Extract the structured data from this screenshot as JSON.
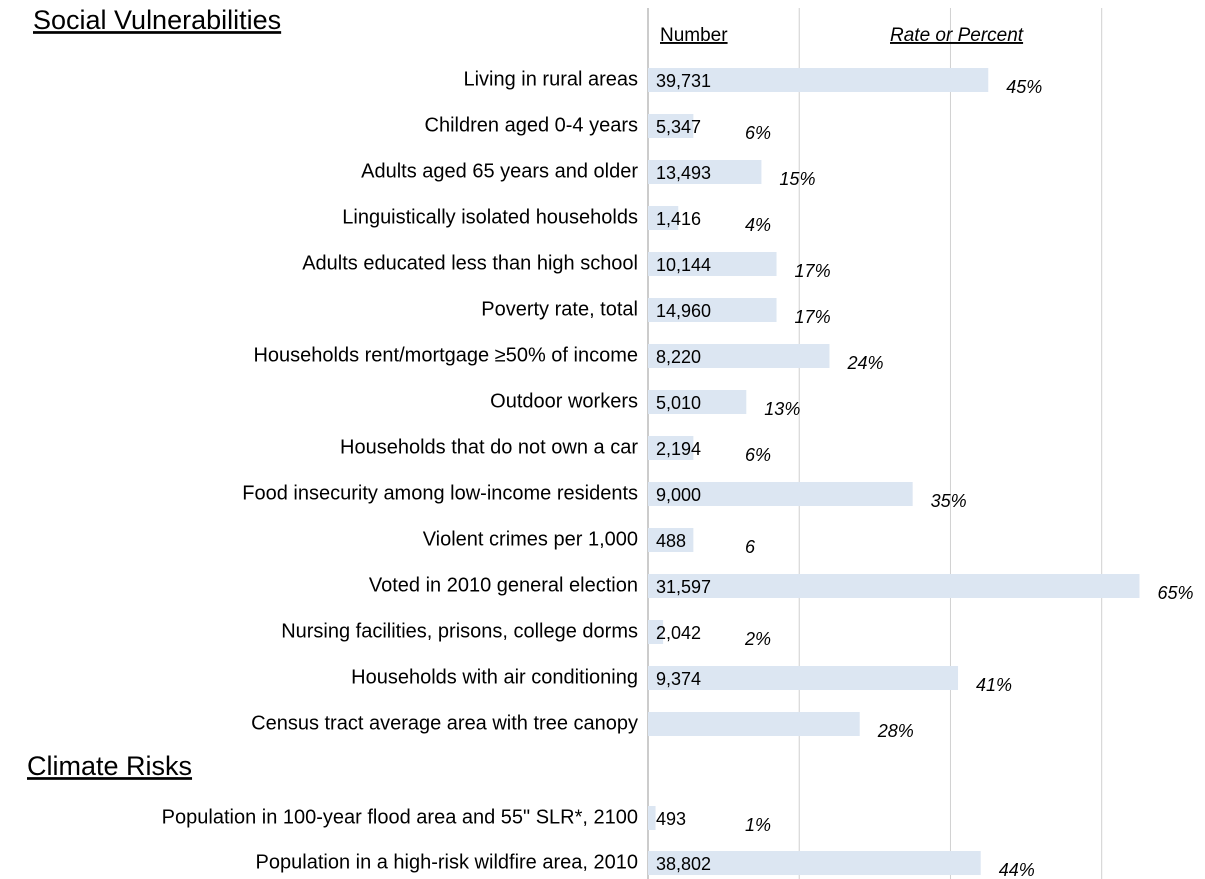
{
  "chart_data": {
    "type": "bar",
    "headers": {
      "number": "Number",
      "rate": "Rate or Percent"
    },
    "color": "#dce6f2",
    "xlim": [
      0,
      73
    ],
    "xticks": [
      0,
      20,
      40,
      60
    ],
    "grid": true,
    "sections": [
      {
        "title": "Social Vulnerabilities",
        "categories": [
          "Living in rural areas",
          "Children aged 0-4 years",
          "Adults aged 65 years and older",
          "Linguistically isolated households",
          "Adults educated less than high school",
          "Poverty rate, total",
          "Households rent/mortgage ≥50% of income",
          "Outdoor workers",
          "Households that do not own a car",
          "Food insecurity among low-income residents",
          "Violent crimes per 1,000",
          "Voted in 2010 general election",
          "Nursing facilities, prisons, college dorms",
          "Households with air conditioning",
          "Census tract average area with tree canopy"
        ],
        "numbers": [
          39731,
          5347,
          13493,
          1416,
          10144,
          14960,
          8220,
          5010,
          2194,
          9000,
          488,
          31597,
          2042,
          9374,
          null
        ],
        "number_labels": [
          "39,731",
          "5,347",
          "13,493",
          "1,416",
          "10,144",
          "14,960",
          "8,220",
          "5,010",
          "2,194",
          "9,000",
          "488",
          "31,597",
          "2,042",
          "9,374",
          null
        ],
        "values": [
          45,
          6,
          15,
          4,
          17,
          17,
          24,
          13,
          6,
          35,
          6,
          65,
          2,
          41,
          28
        ],
        "value_labels": [
          "45%",
          "6%",
          "15%",
          "4%",
          "17%",
          "17%",
          "24%",
          "13%",
          "6%",
          "35%",
          "6",
          "65%",
          "2%",
          "41%",
          "28%"
        ]
      },
      {
        "title": "Climate Risks",
        "categories": [
          "Population in 100-year flood area and 55\" SLR*, 2100",
          "Population in a high-risk wildfire area, 2010"
        ],
        "numbers": [
          493,
          38802
        ],
        "number_labels": [
          "493",
          "38,802"
        ],
        "values": [
          1,
          44
        ],
        "value_labels": [
          "1%",
          "44%"
        ]
      }
    ]
  }
}
